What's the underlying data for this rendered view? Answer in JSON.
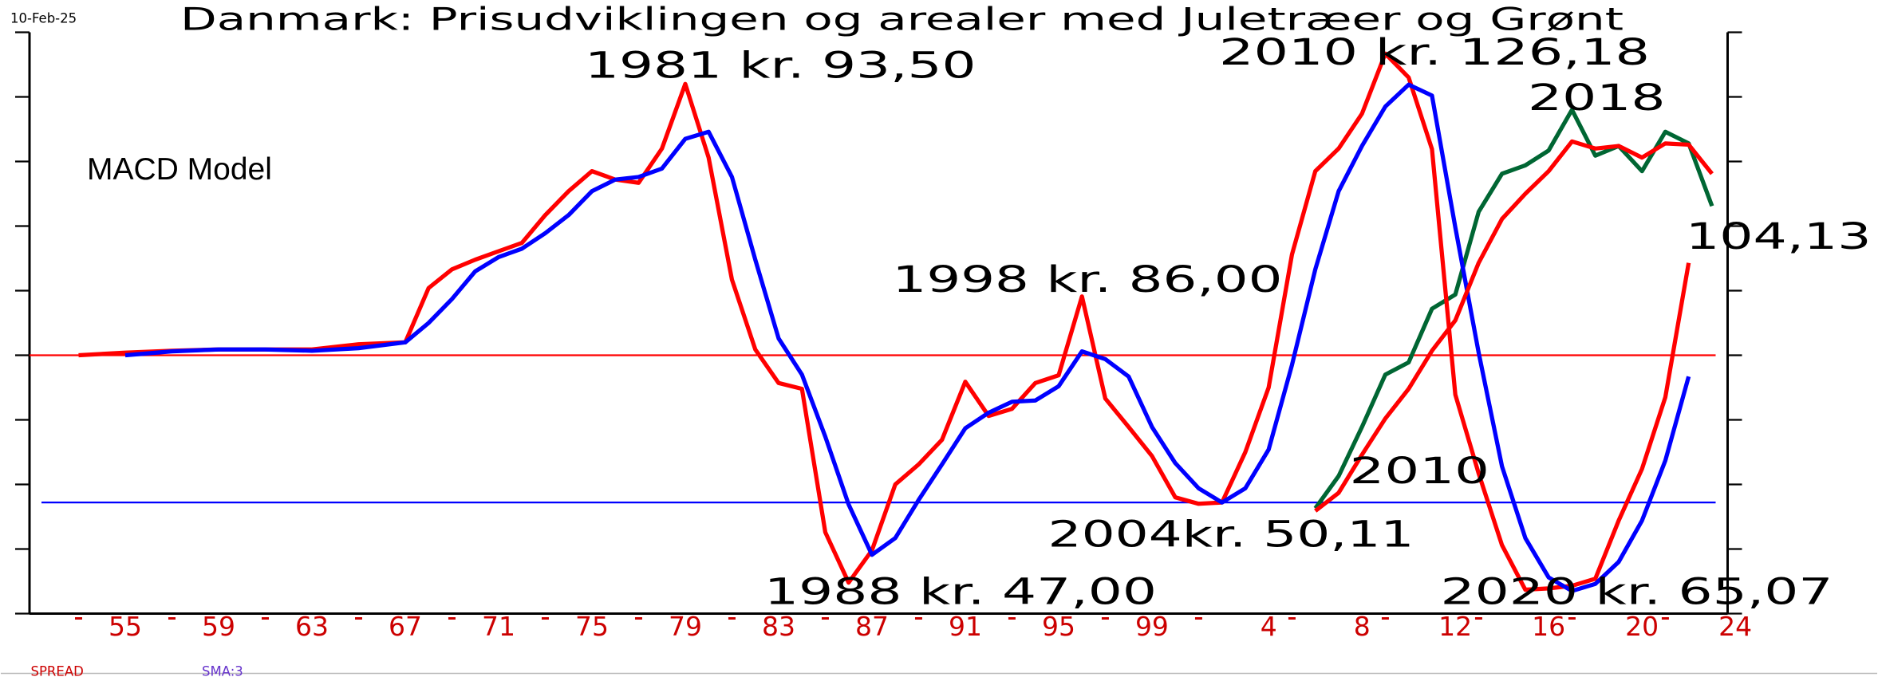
{
  "chart_data": {
    "type": "line",
    "title": "Danmark: Prisudviklingen og arealer med Juletræer og Grønt",
    "date": "10-Feb-25",
    "subtitle": "MACD Model",
    "annotations": [
      "1981 kr. 93,50",
      "2010 kr. 126,18",
      "2018",
      "104,13",
      "1998 kr. 86,00",
      "2010",
      "2004kr. 50,11",
      "1988 kr. 47,00",
      "2020 kr. 65,07"
    ],
    "xlim": [
      1951,
      2023.7
    ],
    "ylim": [
      -4,
      5
    ],
    "xticks": [
      {
        "value": 1955,
        "label": "55"
      },
      {
        "value": 1959,
        "label": "59"
      },
      {
        "value": 1963,
        "label": "63"
      },
      {
        "value": 1967,
        "label": "67"
      },
      {
        "value": 1971,
        "label": "71"
      },
      {
        "value": 1975,
        "label": "75"
      },
      {
        "value": 1979,
        "label": "79"
      },
      {
        "value": 1983,
        "label": "83"
      },
      {
        "value": 1987,
        "label": "87"
      },
      {
        "value": 1991,
        "label": "91"
      },
      {
        "value": 1995,
        "label": "95"
      },
      {
        "value": 1999,
        "label": "99"
      },
      {
        "value": 2004,
        "label": "4"
      },
      {
        "value": 2008,
        "label": "8"
      },
      {
        "value": 2012,
        "label": "12"
      },
      {
        "value": 2016,
        "label": "16"
      },
      {
        "value": 2020,
        "label": "20"
      },
      {
        "value": 2024,
        "label": "24"
      }
    ],
    "xminorticks": [
      1953,
      1957,
      1961,
      1965,
      1969,
      1973,
      1977,
      1981,
      1985,
      1989,
      1993,
      1997,
      2001,
      2005,
      2009,
      2013,
      2017,
      2021
    ],
    "yticks": [
      -4,
      -3,
      -2,
      -1,
      0,
      1,
      2,
      3,
      4,
      5
    ],
    "reference_lines": [
      {
        "value": 0,
        "color": "#ff0000"
      },
      {
        "value": -2.28,
        "color": "#0000ff"
      }
    ],
    "series": [
      {
        "name": "SPREAD",
        "color": "#ff0000",
        "x": [
          1953,
          1955,
          1957,
          1959,
          1961,
          1963,
          1965,
          1967,
          1968,
          1969,
          1970,
          1971,
          1972,
          1973,
          1974,
          1975,
          1976,
          1977,
          1978,
          1979,
          1980,
          1981,
          1982,
          1983,
          1984,
          1985,
          1986,
          1987,
          1988,
          1989,
          1990,
          1991,
          1992,
          1993,
          1994,
          1995,
          1996,
          1997,
          1998,
          1999,
          2000,
          2001,
          2002,
          2003,
          2004,
          2005,
          2006,
          2007,
          2008,
          2009,
          2010,
          2011,
          2012,
          2013,
          2014,
          2015,
          2016,
          2017,
          2018,
          2019,
          2020,
          2021,
          2022
        ],
        "values": [
          0,
          0.04,
          0.07,
          0.09,
          0.09,
          0.09,
          0.17,
          0.2,
          1.04,
          1.33,
          1.48,
          1.61,
          1.74,
          2.17,
          2.54,
          2.85,
          2.72,
          2.67,
          3.2,
          4.2,
          3.06,
          1.17,
          0.09,
          -0.43,
          -0.52,
          -2.74,
          -3.52,
          -3.02,
          -2.0,
          -1.69,
          -1.31,
          -0.41,
          -0.94,
          -0.83,
          -0.43,
          -0.31,
          0.91,
          -0.67,
          -1.11,
          -1.56,
          -2.2,
          -2.3,
          -2.28,
          -1.5,
          -0.5,
          1.56,
          2.85,
          3.2,
          3.74,
          4.67,
          4.3,
          3.19,
          -0.61,
          -1.83,
          -2.94,
          -3.63,
          -3.61,
          -3.57,
          -3.46,
          -2.56,
          -1.76,
          -0.65,
          1.43
        ]
      },
      {
        "name": "SMA:3",
        "color": "#0000ff",
        "x": [
          1955,
          1957,
          1959,
          1961,
          1963,
          1965,
          1967,
          1968,
          1969,
          1970,
          1971,
          1972,
          1973,
          1974,
          1975,
          1976,
          1977,
          1978,
          1979,
          1980,
          1981,
          1982,
          1983,
          1984,
          1985,
          1986,
          1987,
          1988,
          1989,
          1990,
          1991,
          1992,
          1993,
          1994,
          1995,
          1996,
          1997,
          1998,
          1999,
          2000,
          2001,
          2002,
          2003,
          2004,
          2005,
          2006,
          2007,
          2008,
          2009,
          2010,
          2011,
          2012,
          2013,
          2014,
          2015,
          2016,
          2017,
          2018,
          2019,
          2020,
          2021,
          2022
        ],
        "values": [
          0,
          0.06,
          0.09,
          0.09,
          0.07,
          0.11,
          0.2,
          0.5,
          0.87,
          1.3,
          1.52,
          1.65,
          1.89,
          2.17,
          2.54,
          2.72,
          2.76,
          2.89,
          3.35,
          3.46,
          2.76,
          1.48,
          0.26,
          -0.3,
          -1.26,
          -2.31,
          -3.09,
          -2.83,
          -2.24,
          -1.69,
          -1.13,
          -0.89,
          -0.72,
          -0.7,
          -0.48,
          0.06,
          -0.06,
          -0.33,
          -1.11,
          -1.67,
          -2.06,
          -2.28,
          -2.06,
          -1.46,
          -0.15,
          1.33,
          2.54,
          3.24,
          3.85,
          4.19,
          4.02,
          1.98,
          0.04,
          -1.72,
          -2.83,
          -3.44,
          -3.65,
          -3.54,
          -3.2,
          -2.56,
          -1.63,
          -0.33
        ]
      },
      {
        "color": "#006633",
        "x": [
          2006,
          2007,
          2008,
          2009,
          2010,
          2011,
          2012,
          2013,
          2014,
          2015,
          2016,
          2017,
          2018,
          2019,
          2020,
          2021,
          2022,
          2023
        ],
        "values": [
          -2.37,
          -1.87,
          -1.11,
          -0.3,
          -0.11,
          0.72,
          0.94,
          2.22,
          2.81,
          2.94,
          3.17,
          3.8,
          3.09,
          3.24,
          2.85,
          3.46,
          3.28,
          2.31
        ]
      },
      {
        "color": "#ff0000",
        "x": [
          2006,
          2007,
          2008,
          2009,
          2010,
          2011,
          2012,
          2013,
          2014,
          2015,
          2016,
          2017,
          2018,
          2019,
          2020,
          2021,
          2022,
          2023
        ],
        "values": [
          -2.41,
          -2.13,
          -1.54,
          -0.98,
          -0.52,
          0.07,
          0.54,
          1.43,
          2.11,
          2.5,
          2.85,
          3.31,
          3.2,
          3.24,
          3.06,
          3.28,
          3.26,
          2.81
        ]
      }
    ]
  }
}
